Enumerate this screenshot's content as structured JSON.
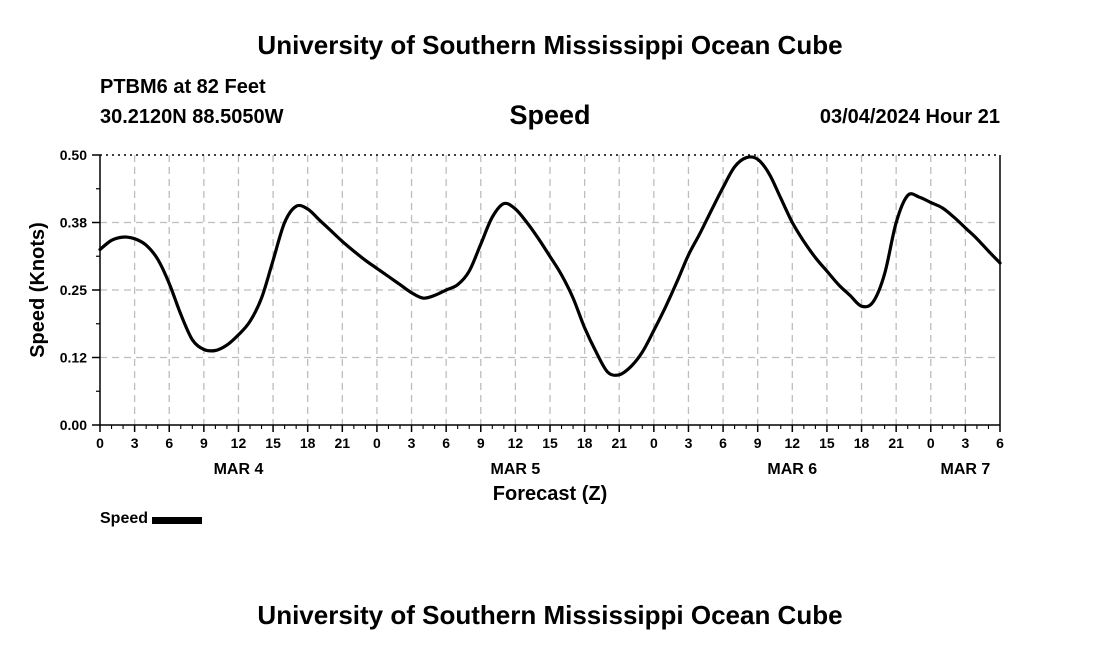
{
  "header": {
    "title": "University of Southern Mississippi Ocean Cube",
    "station": "PTBM6 at 82 Feet",
    "coordinates": "30.2120N  88.5050W",
    "chart_heading": "Speed",
    "datetime": "03/04/2024 Hour 21"
  },
  "legend": {
    "label": "Speed"
  },
  "footer": {
    "title": "University of Southern Mississippi Ocean Cube"
  },
  "chart_data": {
    "type": "line",
    "title": "Speed",
    "xlabel": "Forecast (Z)",
    "ylabel": "Speed (Knots)",
    "ylim": [
      0,
      0.5
    ],
    "yticks": [
      0.0,
      0.125,
      0.25,
      0.375,
      0.5
    ],
    "ytick_labels": [
      "0.00",
      "0.12",
      "0.25",
      "0.38",
      "0.50"
    ],
    "xlim_hours": [
      0,
      78
    ],
    "xticks_hours": [
      0,
      3,
      6,
      9,
      12,
      15,
      18,
      21,
      24,
      27,
      30,
      33,
      36,
      39,
      42,
      45,
      48,
      51,
      54,
      57,
      60,
      63,
      66,
      69,
      72,
      75,
      78
    ],
    "xtick_labels": [
      "0",
      "3",
      "6",
      "9",
      "12",
      "15",
      "18",
      "21",
      "0",
      "3",
      "6",
      "9",
      "12",
      "15",
      "18",
      "21",
      "0",
      "3",
      "6",
      "9",
      "12",
      "15",
      "18",
      "21",
      "0",
      "3",
      "6"
    ],
    "date_labels": [
      {
        "label": "MAR 4",
        "hour": 12
      },
      {
        "label": "MAR 5",
        "hour": 36
      },
      {
        "label": "MAR 6",
        "hour": 60
      },
      {
        "label": "MAR 7",
        "hour": 75
      }
    ],
    "grid": true,
    "color": "#000000",
    "series": [
      {
        "name": "Speed",
        "x_hours": [
          0,
          1,
          2,
          3,
          4,
          5,
          6,
          7,
          8,
          9,
          10,
          11,
          12,
          13,
          14,
          15,
          16,
          17,
          18,
          19,
          20,
          21,
          22,
          23,
          24,
          25,
          26,
          27,
          28,
          29,
          30,
          31,
          32,
          33,
          34,
          35,
          36,
          37,
          38,
          39,
          40,
          41,
          42,
          43,
          44,
          45,
          46,
          47,
          48,
          49,
          50,
          51,
          52,
          53,
          54,
          55,
          56,
          57,
          58,
          59,
          60,
          61,
          62,
          63,
          64,
          65,
          66,
          67,
          68,
          69,
          70,
          71,
          72,
          73,
          74,
          75,
          76,
          77,
          78
        ],
        "values": [
          0.325,
          0.342,
          0.348,
          0.345,
          0.333,
          0.307,
          0.262,
          0.205,
          0.158,
          0.14,
          0.138,
          0.148,
          0.167,
          0.192,
          0.235,
          0.305,
          0.375,
          0.405,
          0.4,
          0.38,
          0.36,
          0.34,
          0.322,
          0.305,
          0.29,
          0.275,
          0.26,
          0.245,
          0.235,
          0.24,
          0.25,
          0.26,
          0.285,
          0.335,
          0.385,
          0.41,
          0.4,
          0.375,
          0.345,
          0.312,
          0.278,
          0.235,
          0.18,
          0.135,
          0.098,
          0.093,
          0.108,
          0.135,
          0.175,
          0.218,
          0.265,
          0.315,
          0.355,
          0.398,
          0.44,
          0.478,
          0.495,
          0.492,
          0.465,
          0.42,
          0.375,
          0.34,
          0.31,
          0.285,
          0.26,
          0.24,
          0.22,
          0.228,
          0.28,
          0.375,
          0.425,
          0.422,
          0.412,
          0.402,
          0.385,
          0.365,
          0.345,
          0.322,
          0.3
        ]
      }
    ]
  }
}
